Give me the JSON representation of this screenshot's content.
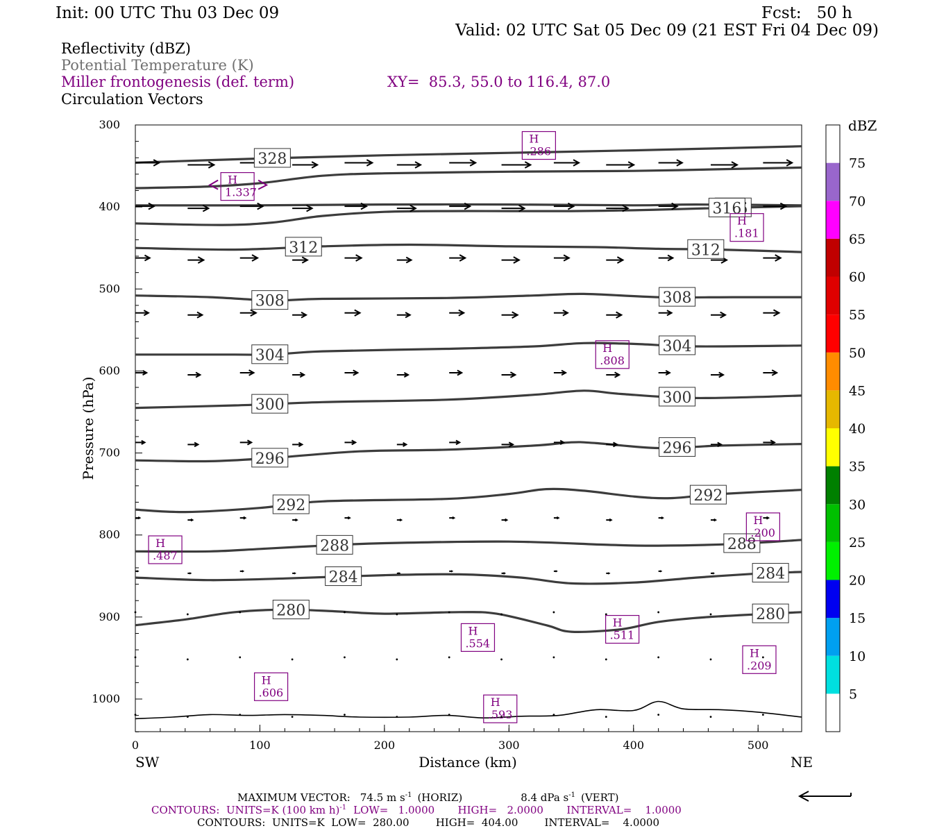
{
  "header": {
    "init": "Init: 00 UTC Thu 03 Dec 09",
    "fcst": "Fcst:   50 h",
    "valid": "Valid: 02 UTC Sat 05 Dec 09 (21 EST Fri 04 Dec 09)",
    "field1": "Reflectivity (dBZ)",
    "field2": "Potential Temperature (K)",
    "field3": "Miller frontogenesis (def. term)",
    "xy": "XY=  85.3, 55.0 to 116.4, 87.0",
    "field4": "Circulation Vectors"
  },
  "colors": {
    "theta": "#3c3c3c",
    "fronto": "#800080",
    "field2_text": "#707070",
    "colorbar": [
      "#ffffff",
      "#00e0e0",
      "#00a0f0",
      "#0000f0",
      "#00f000",
      "#00c000",
      "#008000",
      "#ffff00",
      "#e6b800",
      "#ff8c00",
      "#ff0000",
      "#e00000",
      "#c00000",
      "#ff00ff",
      "#9966cc",
      "#ffffff"
    ]
  },
  "chart_data": {
    "type": "cross-section",
    "xlabel": "Distance (km)",
    "ylabel": "Pressure (hPa)",
    "xlim": [
      0,
      535
    ],
    "ylim": [
      1040,
      300
    ],
    "x_ticks": [
      "0",
      "100",
      "200",
      "300",
      "400",
      "500"
    ],
    "y_ticks": [
      "300",
      "400",
      "500",
      "600",
      "700",
      "800",
      "900",
      "1000"
    ],
    "x_end_labels": {
      "left": "SW",
      "right": "NE"
    },
    "theta_contours": [
      {
        "value": 328,
        "label": "328",
        "label_x": 110,
        "points": [
          [
            0,
            346
          ],
          [
            100,
            341
          ],
          [
            200,
            337
          ],
          [
            300,
            334
          ],
          [
            400,
            331
          ],
          [
            535,
            326
          ]
        ]
      },
      {
        "value": 324,
        "label": "",
        "label_x": null,
        "points": [
          [
            0,
            377
          ],
          [
            60,
            375
          ],
          [
            100,
            371
          ],
          [
            150,
            362
          ],
          [
            200,
            359
          ],
          [
            300,
            357
          ],
          [
            400,
            356
          ],
          [
            500,
            353
          ],
          [
            535,
            352
          ]
        ]
      },
      {
        "value": 320,
        "label": "",
        "label_x": null,
        "points": [
          [
            0,
            398
          ],
          [
            100,
            398
          ],
          [
            200,
            397
          ],
          [
            300,
            397
          ],
          [
            400,
            398
          ],
          [
            450,
            397
          ],
          [
            535,
            398
          ]
        ]
      },
      {
        "value": 316,
        "label": "316",
        "label_x": 480,
        "points": [
          [
            0,
            420
          ],
          [
            70,
            422
          ],
          [
            110,
            419
          ],
          [
            150,
            411
          ],
          [
            200,
            406
          ],
          [
            250,
            405
          ],
          [
            300,
            405
          ],
          [
            350,
            405
          ],
          [
            400,
            404
          ],
          [
            450,
            402
          ],
          [
            535,
            399
          ]
        ]
      },
      {
        "value": 312,
        "label": "312",
        "label_x": 135,
        "points": [
          [
            0,
            450
          ],
          [
            80,
            452
          ],
          [
            150,
            448
          ],
          [
            220,
            446
          ],
          [
            300,
            448
          ],
          [
            370,
            449
          ],
          [
            420,
            451
          ],
          [
            470,
            452
          ],
          [
            535,
            455
          ]
        ]
      },
      {
        "value": 308,
        "label": "308",
        "label_x": 108,
        "points": [
          [
            0,
            508
          ],
          [
            60,
            510
          ],
          [
            110,
            514
          ],
          [
            150,
            512
          ],
          [
            250,
            511
          ],
          [
            320,
            508
          ],
          [
            360,
            506
          ],
          [
            420,
            510
          ],
          [
            480,
            510
          ],
          [
            535,
            510
          ]
        ]
      },
      {
        "value": 304,
        "label": "304",
        "label_x": 108,
        "points": [
          [
            0,
            580
          ],
          [
            80,
            580
          ],
          [
            110,
            580
          ],
          [
            150,
            576
          ],
          [
            250,
            573
          ],
          [
            320,
            570
          ],
          [
            360,
            566
          ],
          [
            400,
            567
          ],
          [
            450,
            570
          ],
          [
            535,
            569
          ]
        ]
      },
      {
        "value": 300,
        "label": "300",
        "label_x": 108,
        "points": [
          [
            0,
            645
          ],
          [
            80,
            642
          ],
          [
            150,
            638
          ],
          [
            250,
            635
          ],
          [
            320,
            629
          ],
          [
            360,
            624
          ],
          [
            390,
            628
          ],
          [
            450,
            633
          ],
          [
            535,
            630
          ]
        ]
      },
      {
        "value": 296,
        "label": "296",
        "label_x": 108,
        "points": [
          [
            0,
            709
          ],
          [
            60,
            710
          ],
          [
            110,
            706
          ],
          [
            180,
            698
          ],
          [
            250,
            696
          ],
          [
            320,
            691
          ],
          [
            350,
            687
          ],
          [
            370,
            688
          ],
          [
            420,
            694
          ],
          [
            470,
            691
          ],
          [
            535,
            689
          ]
        ]
      },
      {
        "value": 292,
        "label": "292",
        "label_x": 125,
        "points": [
          [
            0,
            769
          ],
          [
            40,
            772
          ],
          [
            100,
            767
          ],
          [
            150,
            759
          ],
          [
            250,
            756
          ],
          [
            300,
            750
          ],
          [
            330,
            744
          ],
          [
            360,
            746
          ],
          [
            400,
            753
          ],
          [
            430,
            755
          ],
          [
            470,
            750
          ],
          [
            535,
            745
          ]
        ]
      },
      {
        "value": 288,
        "label": "288",
        "label_x": 160,
        "points": [
          [
            0,
            820
          ],
          [
            60,
            820
          ],
          [
            100,
            817
          ],
          [
            150,
            813
          ],
          [
            200,
            810
          ],
          [
            300,
            808
          ],
          [
            380,
            812
          ],
          [
            420,
            813
          ],
          [
            480,
            811
          ],
          [
            535,
            806
          ]
        ]
      },
      {
        "value": 284,
        "label": "284",
        "label_x": 167,
        "points": [
          [
            0,
            852
          ],
          [
            60,
            855
          ],
          [
            120,
            853
          ],
          [
            200,
            849
          ],
          [
            260,
            848
          ],
          [
            310,
            852
          ],
          [
            350,
            859
          ],
          [
            400,
            858
          ],
          [
            450,
            852
          ],
          [
            500,
            847
          ],
          [
            535,
            845
          ]
        ]
      },
      {
        "value": 280,
        "label": "280",
        "label_x": 125,
        "points": [
          [
            0,
            910
          ],
          [
            40,
            903
          ],
          [
            80,
            894
          ],
          [
            120,
            891
          ],
          [
            160,
            893
          ],
          [
            200,
            896
          ],
          [
            260,
            894
          ],
          [
            290,
            896
          ],
          [
            330,
            910
          ],
          [
            350,
            918
          ],
          [
            390,
            915
          ],
          [
            420,
            906
          ],
          [
            460,
            900
          ],
          [
            535,
            894
          ]
        ]
      },
      {
        "value": 276,
        "label": "",
        "label_x": null,
        "points": [
          [
            0,
            1024
          ],
          [
            30,
            1022
          ],
          [
            60,
            1019
          ],
          [
            90,
            1020
          ],
          [
            120,
            1019
          ],
          [
            150,
            1020
          ],
          [
            180,
            1022
          ],
          [
            220,
            1022
          ],
          [
            250,
            1020
          ],
          [
            280,
            1023
          ],
          [
            310,
            1021
          ],
          [
            340,
            1020
          ],
          [
            370,
            1013
          ],
          [
            400,
            1014
          ],
          [
            420,
            1003
          ],
          [
            440,
            1012
          ],
          [
            470,
            1013
          ],
          [
            500,
            1016
          ],
          [
            535,
            1022
          ]
        ]
      }
    ],
    "frontogenesis_maxima": [
      {
        "label": "H",
        "value": ".286",
        "x": 324,
        "p": 325
      },
      {
        "label": "H",
        "value": "1.337",
        "x": 82,
        "p": 375
      },
      {
        "label": "H",
        "value": ".181",
        "x": 491,
        "p": 425
      },
      {
        "label": "H",
        "value": ".808",
        "x": 383,
        "p": 580
      },
      {
        "label": "H",
        "value": ".200",
        "x": 504,
        "p": 790
      },
      {
        "label": "H",
        "value": ".487",
        "x": 24,
        "p": 818
      },
      {
        "label": "H",
        "value": ".554",
        "x": 275,
        "p": 925
      },
      {
        "label": "H",
        "value": ".511",
        "x": 391,
        "p": 915
      },
      {
        "label": "H",
        "value": ".209",
        "x": 501,
        "p": 952
      },
      {
        "label": "H",
        "value": ".606",
        "x": 109,
        "p": 985
      },
      {
        "label": "H",
        "value": ".593",
        "x": 293,
        "p": 1012
      }
    ],
    "vector_levels": [
      {
        "p": 347,
        "u": 38,
        "w": 0
      },
      {
        "p": 400,
        "u": 30,
        "w": 0
      },
      {
        "p": 463,
        "u": 23,
        "w": 0
      },
      {
        "p": 530,
        "u": 21,
        "w": 0
      },
      {
        "p": 603,
        "u": 18,
        "w": 0
      },
      {
        "p": 688,
        "u": 15,
        "w": 0
      },
      {
        "p": 780,
        "u": 7,
        "w": 0
      },
      {
        "p": 845,
        "u": 4,
        "w": 0
      },
      {
        "p": 895,
        "u": 1,
        "w": 0
      },
      {
        "p": 950,
        "u": 0,
        "w": 0
      },
      {
        "p": 1020,
        "u": 0,
        "w": 0
      }
    ],
    "colorbar_title": "dBZ",
    "colorbar_ticks": [
      "5",
      "10",
      "15",
      "20",
      "25",
      "30",
      "35",
      "40",
      "45",
      "50",
      "55",
      "60",
      "65",
      "70",
      "75"
    ]
  },
  "footer": {
    "max_vector_label": "MAXIMUM VECTOR:",
    "max_horiz": "74.5 m s",
    "horiz_tag": "(HORIZ)",
    "max_vert": "8.4 dPa s",
    "vert_tag": "(VERT)",
    "exp": "-1",
    "contours1": "CONTOURS:  UNITS=K (100 km h)",
    "contours1_rest": "LOW=   1.0000       HIGH=   2.0000       INTERVAL=    1.0000",
    "contours2": "CONTOURS:  UNITS=K  LOW=  280.00        HIGH=  404.00        INTERVAL=    4.0000"
  }
}
